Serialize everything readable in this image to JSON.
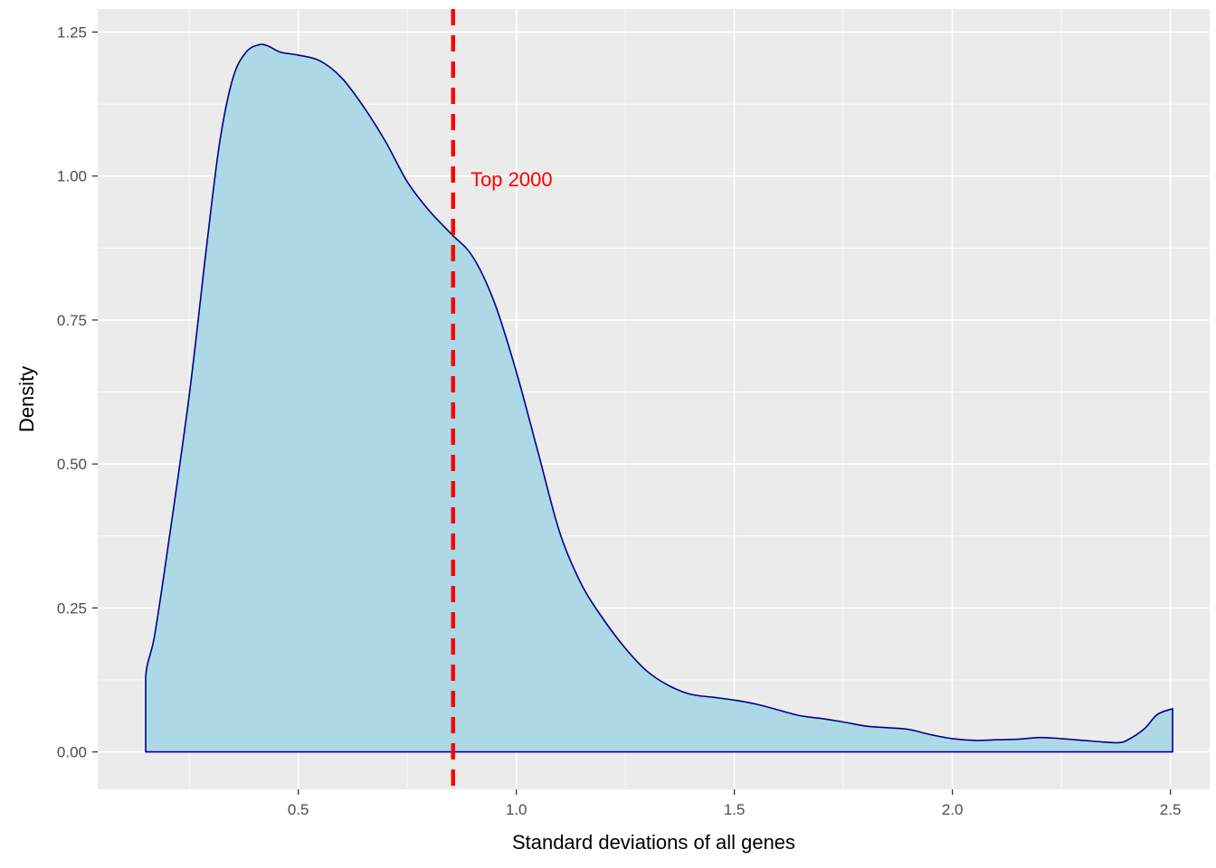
{
  "chart_data": {
    "type": "area",
    "title": "",
    "xlabel": "Standard deviations of all genes",
    "ylabel": "Density",
    "xlim": [
      0.04,
      2.59
    ],
    "ylim": [
      -0.065,
      1.29
    ],
    "x_ticks": [
      0.5,
      1.0,
      1.5,
      2.0,
      2.5
    ],
    "x_tick_labels": [
      "0.5",
      "1.0",
      "1.5",
      "2.0",
      "2.5"
    ],
    "y_ticks": [
      0.0,
      0.25,
      0.5,
      0.75,
      1.0,
      1.25
    ],
    "y_tick_labels": [
      "0.00",
      "0.25",
      "0.50",
      "0.75",
      "1.00",
      "1.25"
    ],
    "grid": true,
    "legend": "none",
    "colors": {
      "panel": "#ebebeb",
      "grid": "#ffffff",
      "fill": "#add8e6",
      "outline": "#00008b",
      "vline": "#ff0000",
      "annotation": "#ff0000"
    },
    "series": [
      {
        "x": [
          0.15,
          0.15,
          0.17,
          0.2,
          0.25,
          0.29,
          0.32,
          0.35,
          0.38,
          0.41,
          0.43,
          0.46,
          0.5,
          0.55,
          0.6,
          0.65,
          0.7,
          0.75,
          0.8,
          0.85,
          0.9,
          0.95,
          1.0,
          1.05,
          1.1,
          1.15,
          1.2,
          1.25,
          1.3,
          1.35,
          1.4,
          1.45,
          1.5,
          1.55,
          1.6,
          1.65,
          1.7,
          1.75,
          1.8,
          1.85,
          1.9,
          1.95,
          2.0,
          2.05,
          2.1,
          2.15,
          2.2,
          2.25,
          2.3,
          2.35,
          2.38,
          2.4,
          2.44,
          2.47,
          2.505,
          2.505
        ],
        "y": [
          0.0,
          0.13,
          0.2,
          0.35,
          0.62,
          0.88,
          1.06,
          1.17,
          1.215,
          1.228,
          1.226,
          1.215,
          1.21,
          1.2,
          1.17,
          1.12,
          1.06,
          0.99,
          0.94,
          0.9,
          0.86,
          0.78,
          0.66,
          0.52,
          0.38,
          0.29,
          0.23,
          0.18,
          0.14,
          0.115,
          0.1,
          0.095,
          0.09,
          0.083,
          0.073,
          0.063,
          0.058,
          0.052,
          0.045,
          0.042,
          0.039,
          0.03,
          0.023,
          0.02,
          0.021,
          0.022,
          0.025,
          0.023,
          0.02,
          0.017,
          0.016,
          0.02,
          0.04,
          0.065,
          0.075,
          0.0
        ]
      }
    ],
    "vline": {
      "x": 0.855,
      "style": "dashed"
    },
    "annotations": [
      {
        "text": "Top 2000",
        "x": 0.895,
        "y": 0.995
      }
    ]
  }
}
